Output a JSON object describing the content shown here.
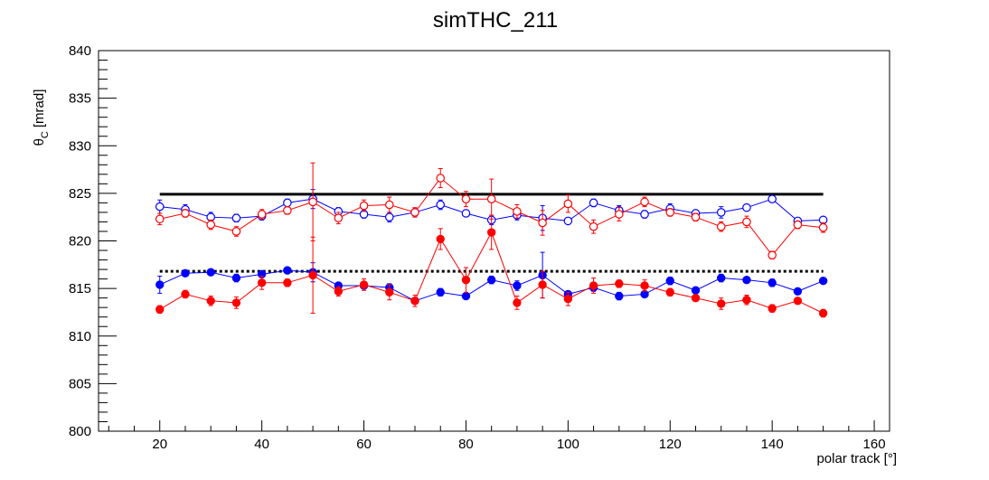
{
  "chart_data": {
    "type": "scatter",
    "title": "simTHC_211",
    "xlabel": "polar track [°]",
    "ylabel_main": "θ",
    "ylabel_sub": "C",
    "ylabel_unit": "[mrad]",
    "xlim": [
      8,
      163
    ],
    "ylim": [
      800,
      840
    ],
    "x_ticks": [
      20,
      40,
      60,
      80,
      100,
      120,
      140,
      160
    ],
    "y_ticks": [
      800,
      805,
      810,
      815,
      820,
      825,
      830,
      835,
      840
    ],
    "grid": false,
    "legend": "none",
    "x": [
      20,
      25,
      30,
      35,
      40,
      45,
      50,
      55,
      60,
      65,
      70,
      75,
      80,
      85,
      90,
      95,
      100,
      105,
      110,
      115,
      120,
      125,
      130,
      135,
      140,
      145,
      150
    ],
    "reference_lines": [
      {
        "name": "",
        "style": "solid",
        "color": "#000000",
        "x_range": [
          20,
          150
        ],
        "y": 824.9
      },
      {
        "name": "",
        "style": "dotted",
        "color": "#000000",
        "x_range": [
          20,
          150
        ],
        "y": 816.8
      }
    ],
    "series": [
      {
        "color": "#0000ff",
        "marker": "open-circle",
        "values": [
          823.6,
          823.3,
          822.5,
          822.4,
          822.6,
          824.0,
          824.4,
          823.1,
          822.8,
          822.5,
          823.0,
          823.8,
          822.9,
          822.2,
          822.7,
          822.4,
          822.1,
          824.0,
          823.2,
          822.8,
          823.4,
          822.9,
          823.0,
          823.5,
          824.4,
          822.1,
          822.2
        ],
        "errors": [
          0.7,
          0.5,
          0.5,
          0.4,
          0.4,
          0.4,
          1.0,
          0.4,
          0.4,
          0.5,
          0.4,
          0.5,
          0.3,
          0.5,
          0.5,
          1.3,
          0.3,
          0.4,
          0.5,
          0.4,
          0.5,
          0.3,
          0.6,
          0.3,
          0.3,
          0.3,
          0.3
        ]
      },
      {
        "color": "#ff0000",
        "marker": "open-circle",
        "values": [
          822.3,
          822.9,
          821.7,
          821.0,
          822.8,
          823.2,
          824.1,
          822.4,
          823.7,
          823.8,
          823.0,
          826.6,
          824.4,
          824.4,
          823.1,
          821.9,
          823.9,
          821.5,
          822.8,
          824.1,
          823.0,
          822.5,
          821.5,
          822.0,
          818.5,
          821.7,
          821.4
        ],
        "errors": [
          0.6,
          0.4,
          0.5,
          0.5,
          0.5,
          0.4,
          4.1,
          0.6,
          0.6,
          0.8,
          0.5,
          1.0,
          0.8,
          2.1,
          0.7,
          1.3,
          0.9,
          0.7,
          0.7,
          0.5,
          0.4,
          0.4,
          0.5,
          0.6,
          0.4,
          0.4,
          0.5
        ]
      },
      {
        "color": "#0000ff",
        "marker": "filled-circle",
        "values": [
          815.4,
          816.6,
          816.7,
          816.1,
          816.5,
          816.9,
          816.7,
          815.3,
          815.3,
          815.1,
          813.7,
          814.6,
          814.2,
          815.9,
          815.3,
          816.4,
          814.4,
          815.1,
          814.2,
          814.4,
          815.8,
          814.8,
          816.1,
          815.9,
          815.6,
          814.7,
          815.8
        ],
        "errors": [
          0.9,
          0.3,
          0.3,
          0.4,
          0.3,
          0.3,
          1.0,
          0.3,
          0.3,
          0.4,
          0.3,
          0.4,
          0.3,
          0.4,
          0.5,
          2.4,
          0.3,
          0.4,
          0.4,
          0.3,
          0.4,
          0.3,
          0.4,
          0.3,
          0.4,
          0.3,
          0.3
        ]
      },
      {
        "color": "#ff0000",
        "marker": "filled-circle",
        "values": [
          812.8,
          814.4,
          813.7,
          813.5,
          815.6,
          815.6,
          816.4,
          814.7,
          815.4,
          814.6,
          813.7,
          820.2,
          815.9,
          820.9,
          813.5,
          815.4,
          813.9,
          815.3,
          815.5,
          815.3,
          814.6,
          814.0,
          813.4,
          813.8,
          812.9,
          813.7,
          812.4
        ],
        "errors": [
          0.4,
          0.4,
          0.5,
          0.6,
          0.7,
          0.4,
          4.0,
          0.5,
          0.6,
          0.8,
          0.6,
          1.1,
          1.3,
          1.8,
          0.7,
          1.4,
          0.7,
          0.8,
          0.4,
          0.6,
          0.4,
          0.3,
          0.6,
          0.5,
          0.4,
          0.3,
          0.4
        ]
      }
    ]
  }
}
